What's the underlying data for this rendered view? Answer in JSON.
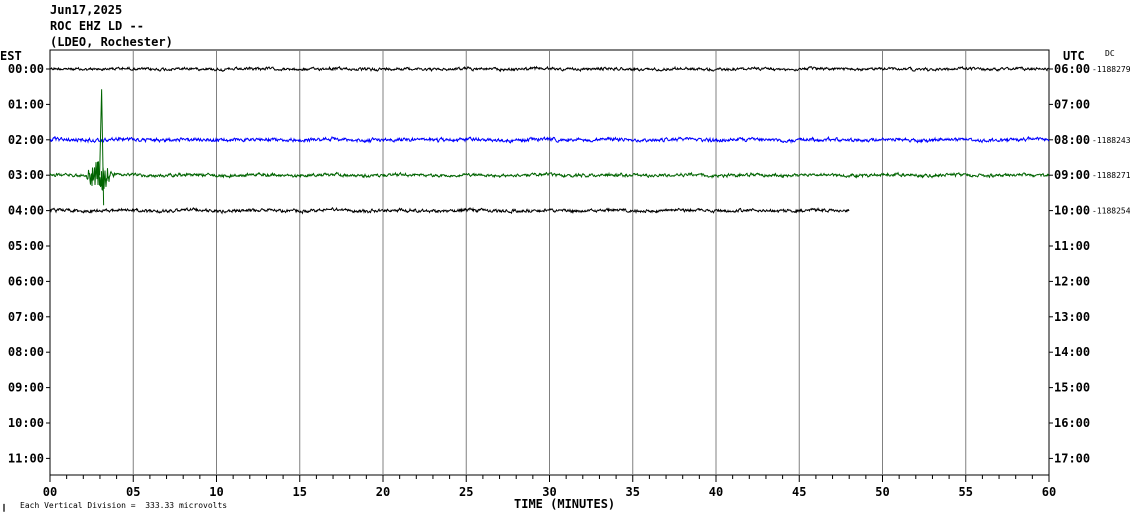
{
  "header": {
    "date": "Jun17,2025",
    "station": "ROC EHZ LD --",
    "network": "(LDEO, Rochester)"
  },
  "axis": {
    "left_tz": "EST",
    "right_tz": "UTC",
    "dc_label": "DC",
    "xlabel": "TIME (MINUTES)",
    "scale_note": "Each Vertical Division =  333.33 microvolts",
    "scale_marker": "∥"
  },
  "chart_data": {
    "type": "line",
    "title": "",
    "xlabel": "TIME (MINUTES)",
    "xlim": [
      0,
      60
    ],
    "x_ticks": [
      "00",
      "05",
      "10",
      "15",
      "20",
      "25",
      "30",
      "35",
      "40",
      "45",
      "50",
      "55",
      "60"
    ],
    "grid": true,
    "rows": [
      {
        "est": "00:00",
        "utc": "06:00",
        "dc": "-1188279",
        "color": "#000000",
        "end_min": 60,
        "noise": 0.18
      },
      {
        "est": "01:00",
        "utc": "07:00",
        "dc": "",
        "color": "",
        "end_min": 0
      },
      {
        "est": "02:00",
        "utc": "08:00",
        "dc": "-1188243",
        "color": "#0000ff",
        "end_min": 60,
        "noise": 0.22
      },
      {
        "est": "03:00",
        "utc": "09:00",
        "dc": "-1188271",
        "color": "#006400",
        "end_min": 60,
        "noise": 0.2,
        "event": {
          "start_min": 2.2,
          "peak_min": 3.1,
          "end_min": 4.4,
          "amplitude": 2.4
        }
      },
      {
        "est": "04:00",
        "utc": "10:00",
        "dc": "-1188254",
        "color": "#000000",
        "end_min": 48,
        "noise": 0.2
      },
      {
        "est": "05:00",
        "utc": "11:00",
        "dc": "",
        "color": "",
        "end_min": 0
      },
      {
        "est": "06:00",
        "utc": "12:00",
        "dc": "",
        "color": "",
        "end_min": 0
      },
      {
        "est": "07:00",
        "utc": "13:00",
        "dc": "",
        "color": "",
        "end_min": 0
      },
      {
        "est": "08:00",
        "utc": "14:00",
        "dc": "",
        "color": "",
        "end_min": 0
      },
      {
        "est": "09:00",
        "utc": "15:00",
        "dc": "",
        "color": "",
        "end_min": 0
      },
      {
        "est": "10:00",
        "utc": "16:00",
        "dc": "",
        "color": "",
        "end_min": 0
      },
      {
        "est": "11:00",
        "utc": "17:00",
        "dc": "",
        "color": "",
        "end_min": 0
      }
    ]
  }
}
